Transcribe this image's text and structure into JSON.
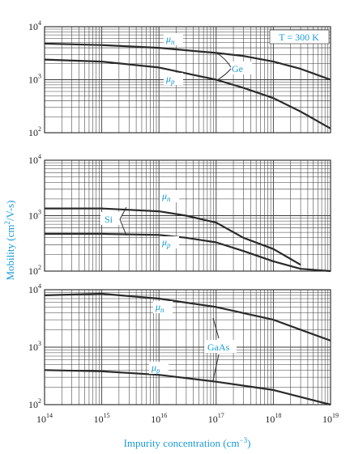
{
  "figure": {
    "ylabel_main": "Mobility (cm",
    "ylabel_exp": "2",
    "ylabel_tail": "/V-s)",
    "xlabel_main": "Impurity concentration (cm",
    "xlabel_exp": "−3",
    "xlabel_tail": ")"
  },
  "colors": {
    "accent": "#1a9ad6",
    "curve": "#2a2a2a",
    "grid": "#3a3a3a",
    "text": "#222222"
  },
  "x_ticks": [
    {
      "base": "10",
      "exp": "14"
    },
    {
      "base": "10",
      "exp": "15"
    },
    {
      "base": "10",
      "exp": "16"
    },
    {
      "base": "10",
      "exp": "17"
    },
    {
      "base": "10",
      "exp": "18"
    },
    {
      "base": "10",
      "exp": "19"
    }
  ],
  "chart_data": [
    {
      "type": "line",
      "x_scale": "log",
      "y_scale": "log",
      "xlim": [
        100000000000000.0,
        1e+19
      ],
      "ylim": [
        100,
        10000
      ],
      "y_ticks": [
        {
          "value": 100,
          "base": "10",
          "exp": "2"
        },
        {
          "value": 1000,
          "base": "10",
          "exp": "3"
        },
        {
          "value": 10000,
          "base": "10",
          "exp": "4"
        }
      ],
      "grid": true,
      "material_label": "Ge",
      "annotation": "T = 300 K",
      "series": [
        {
          "name": "μn",
          "sub": "n",
          "x": [
            100000000000000.0,
            1000000000000000.0,
            1e+16,
            1e+17,
            3e+17,
            1e+18,
            3e+18,
            1e+19
          ],
          "y": [
            4800,
            4500,
            4000,
            3200,
            2800,
            2200,
            1600,
            1000
          ]
        },
        {
          "name": "μp",
          "sub": "p",
          "x": [
            100000000000000.0,
            1000000000000000.0,
            1e+16,
            1e+17,
            3e+17,
            1e+18,
            3e+18,
            1e+19
          ],
          "y": [
            2400,
            2200,
            1700,
            1000,
            700,
            450,
            250,
            120
          ]
        }
      ]
    },
    {
      "type": "line",
      "x_scale": "log",
      "y_scale": "log",
      "xlim": [
        100000000000000.0,
        1e+19
      ],
      "ylim": [
        100,
        10000
      ],
      "y_ticks": [
        {
          "value": 100,
          "base": "10",
          "exp": "2"
        },
        {
          "value": 1000,
          "base": "10",
          "exp": "3"
        },
        {
          "value": 10000,
          "base": "10",
          "exp": "4"
        }
      ],
      "grid": true,
      "material_label": "Si",
      "series": [
        {
          "name": "μn",
          "sub": "n",
          "x": [
            100000000000000.0,
            1000000000000000.0,
            1e+16,
            3e+16,
            1e+17,
            3e+17,
            1e+18,
            3e+18
          ],
          "y": [
            1350,
            1350,
            1200,
            1000,
            750,
            400,
            250,
            130
          ]
        },
        {
          "name": "μp",
          "sub": "p",
          "x": [
            100000000000000.0,
            1000000000000000.0,
            1e+16,
            3e+16,
            1e+17,
            3e+17,
            1e+18,
            3e+18,
            1e+19
          ],
          "y": [
            470,
            470,
            450,
            400,
            330,
            230,
            150,
            110,
            100
          ]
        }
      ]
    },
    {
      "type": "line",
      "x_scale": "log",
      "y_scale": "log",
      "xlim": [
        100000000000000.0,
        1e+19
      ],
      "ylim": [
        100,
        10000
      ],
      "y_ticks": [
        {
          "value": 100,
          "base": "10",
          "exp": "2"
        },
        {
          "value": 1000,
          "base": "10",
          "exp": "3"
        },
        {
          "value": 10000,
          "base": "10",
          "exp": "4"
        }
      ],
      "grid": true,
      "material_label": "GaAs",
      "series": [
        {
          "name": "μn",
          "sub": "n",
          "x": [
            100000000000000.0,
            1000000000000000.0,
            1e+16,
            1e+17,
            1e+18,
            1e+19
          ],
          "y": [
            8000,
            8500,
            7000,
            5000,
            3000,
            1300
          ]
        },
        {
          "name": "μp",
          "sub": "p",
          "x": [
            100000000000000.0,
            1000000000000000.0,
            1e+16,
            1e+17,
            1e+18,
            1e+19
          ],
          "y": [
            400,
            380,
            330,
            250,
            180,
            100
          ]
        }
      ]
    }
  ]
}
